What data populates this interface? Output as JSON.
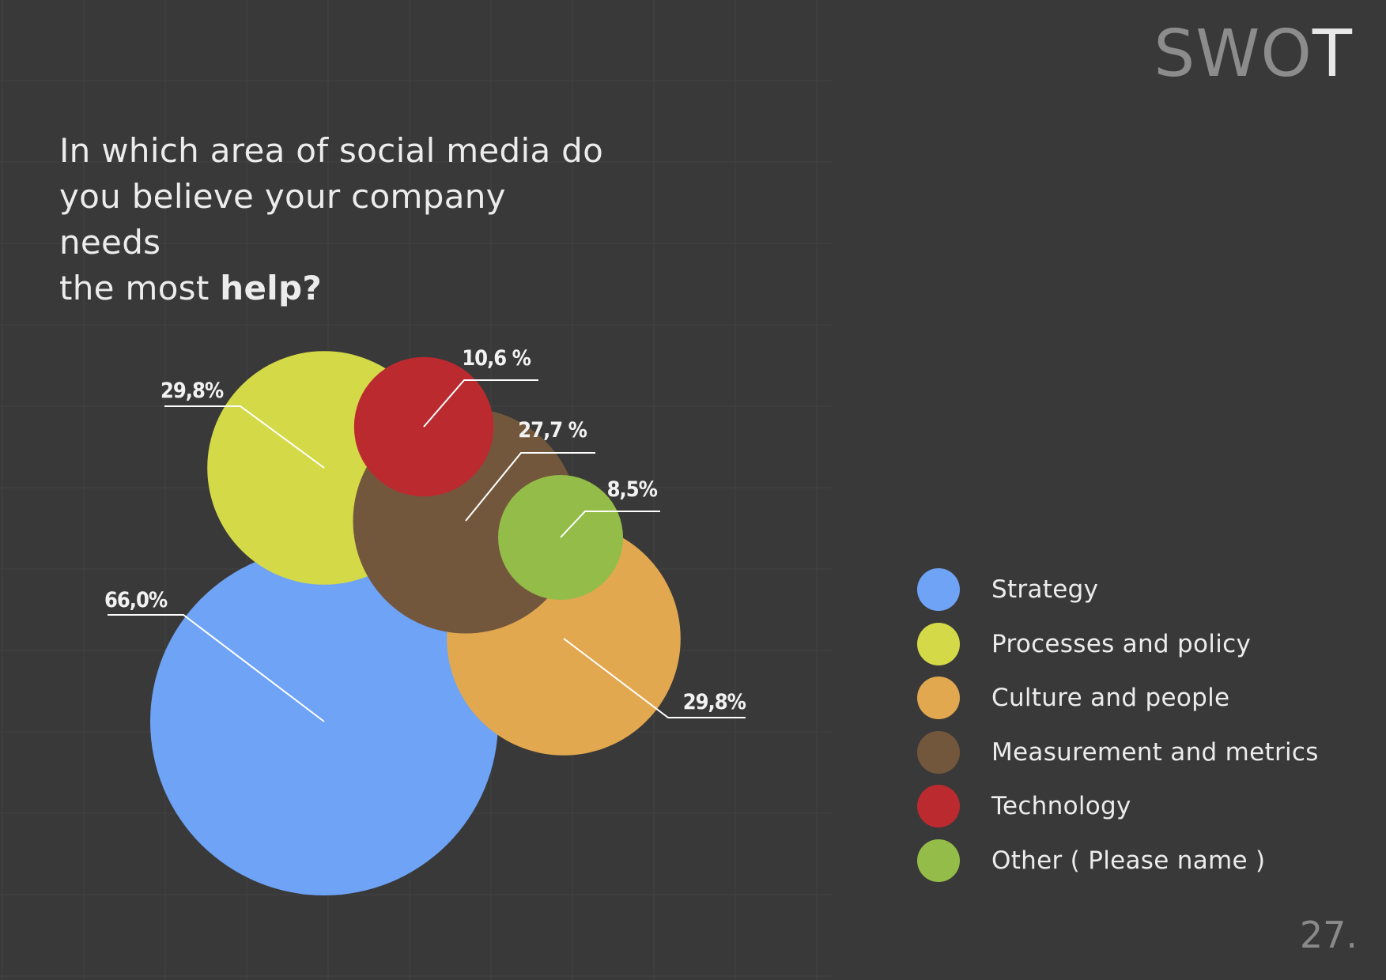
{
  "header": {
    "title_main": "SWO",
    "title_last": "T"
  },
  "question": {
    "line1": "In which area of social media do",
    "line2": "you believe your company needs",
    "line3_prefix": "the most ",
    "line3_bold": "help?"
  },
  "page_number": "27.",
  "chart_data": {
    "type": "bubble",
    "title": "",
    "series": [
      {
        "name": "Strategy",
        "value": 66.0,
        "label": "66,0%",
        "color": "#6ea3f6"
      },
      {
        "name": "Processes and policy",
        "value": 29.8,
        "label": "29,8%",
        "color": "#d4d947"
      },
      {
        "name": "Culture and people",
        "value": 29.8,
        "label": "29,8%",
        "color": "#e2a850"
      },
      {
        "name": "Measurement and metrics",
        "value": 27.7,
        "label": "27,7 %",
        "color": "#73573d"
      },
      {
        "name": "Technology",
        "value": 10.6,
        "label": "10,6 %",
        "color": "#bb2a2f"
      },
      {
        "name": "Other ( Please name )",
        "value": 8.5,
        "label": "8,5%",
        "color": "#93bc49"
      }
    ],
    "legend_position": "right",
    "grid": true
  }
}
